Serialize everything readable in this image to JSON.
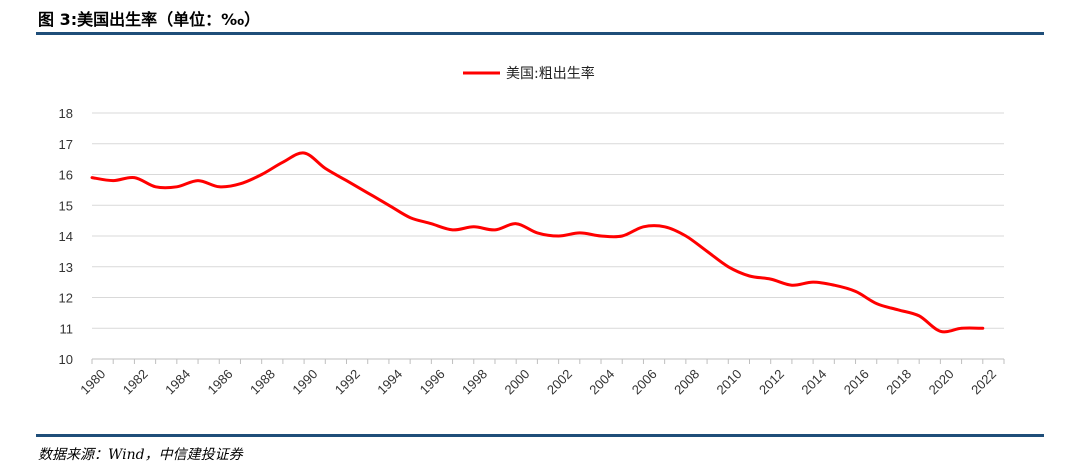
{
  "figure_title": "图 3:美国出生率（单位：‰）",
  "source": "数据来源：Wind，中信建投证券",
  "colors": {
    "series": "#ff0000",
    "rule": "#1f4e79",
    "grid": "#d9d9d9"
  },
  "chart_data": {
    "type": "line",
    "title": "",
    "xlabel": "",
    "ylabel": "",
    "ylim": [
      10,
      18
    ],
    "yticks": [
      10,
      11,
      12,
      13,
      14,
      15,
      16,
      17,
      18
    ],
    "xticks": [
      "1980",
      "1982",
      "1984",
      "1986",
      "1988",
      "1990",
      "1992",
      "1994",
      "1996",
      "1998",
      "2000",
      "2002",
      "2004",
      "2006",
      "2008",
      "2010",
      "2012",
      "2014",
      "2016",
      "2018",
      "2020",
      "2022"
    ],
    "grid": "horizontal",
    "legend_position": "top-center",
    "series": [
      {
        "name": "美国:粗出生率",
        "x": [
          1980,
          1981,
          1982,
          1983,
          1984,
          1985,
          1986,
          1987,
          1988,
          1989,
          1990,
          1991,
          1992,
          1993,
          1994,
          1995,
          1996,
          1997,
          1998,
          1999,
          2000,
          2001,
          2002,
          2003,
          2004,
          2005,
          2006,
          2007,
          2008,
          2009,
          2010,
          2011,
          2012,
          2013,
          2014,
          2015,
          2016,
          2017,
          2018,
          2019,
          2020,
          2021,
          2022
        ],
        "values": [
          15.9,
          15.8,
          15.9,
          15.6,
          15.6,
          15.8,
          15.6,
          15.7,
          16.0,
          16.4,
          16.7,
          16.2,
          15.8,
          15.4,
          15.0,
          14.6,
          14.4,
          14.2,
          14.3,
          14.2,
          14.4,
          14.1,
          14.0,
          14.1,
          14.0,
          14.0,
          14.3,
          14.3,
          14.0,
          13.5,
          13.0,
          12.7,
          12.6,
          12.4,
          12.5,
          12.4,
          12.2,
          11.8,
          11.6,
          11.4,
          10.9,
          11.0,
          11.0
        ]
      }
    ]
  }
}
